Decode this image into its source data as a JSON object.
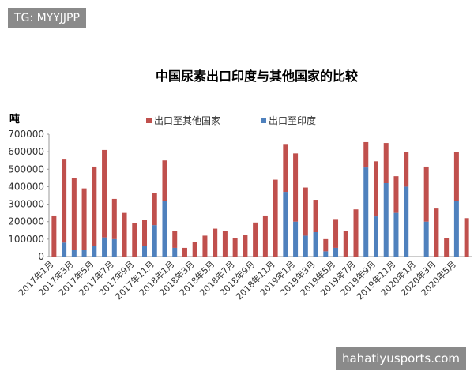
{
  "header": {
    "tag": "TG: MYYJJPP"
  },
  "footer": {
    "site": "hahatiyusports.com"
  },
  "chart_data": {
    "type": "stacked-bar",
    "title": "中国尿素出口印度与其他国家的比较",
    "y_label": "吨",
    "categories": [
      "2017年1月",
      null,
      "2017年3月",
      null,
      "2017年5月",
      null,
      "2017年7月",
      null,
      "2017年9月",
      null,
      "2017年11月",
      null,
      "2018年1月",
      null,
      "2018年3月",
      null,
      "2018年5月",
      null,
      "2018年7月",
      null,
      "2018年9月",
      null,
      "2018年11月",
      null,
      "2019年1月",
      null,
      "2019年3月",
      null,
      "2019年5月",
      null,
      "2019年7月",
      null,
      "2019年9月",
      null,
      "2019年11月",
      null,
      "2020年1月",
      null,
      "2020年3月",
      null,
      "2020年5月",
      null
    ],
    "series": [
      {
        "name": "出口至印度",
        "color": "#4f81bd",
        "values": [
          0,
          80000,
          40000,
          40000,
          60000,
          110000,
          100000,
          0,
          0,
          60000,
          180000,
          320000,
          50000,
          0,
          0,
          0,
          0,
          0,
          0,
          0,
          0,
          0,
          0,
          370000,
          200000,
          120000,
          140000,
          30000,
          50000,
          0,
          0,
          510000,
          230000,
          420000,
          250000,
          400000,
          0,
          200000,
          0,
          0,
          320000,
          0
        ]
      },
      {
        "name": "出口至其他国家",
        "color": "#c0504d",
        "values": [
          235000,
          475000,
          410000,
          350000,
          455000,
          500000,
          230000,
          250000,
          190000,
          150000,
          185000,
          230000,
          95000,
          50000,
          85000,
          120000,
          160000,
          145000,
          105000,
          125000,
          195000,
          235000,
          440000,
          270000,
          390000,
          275000,
          185000,
          70000,
          165000,
          145000,
          270000,
          145000,
          315000,
          230000,
          210000,
          200000,
          0,
          315000,
          275000,
          105000,
          280000,
          220000
        ]
      }
    ],
    "ylim": [
      0,
      700000
    ],
    "yticks": [
      0,
      100000,
      200000,
      300000,
      400000,
      500000,
      600000,
      700000
    ],
    "grid": false
  }
}
